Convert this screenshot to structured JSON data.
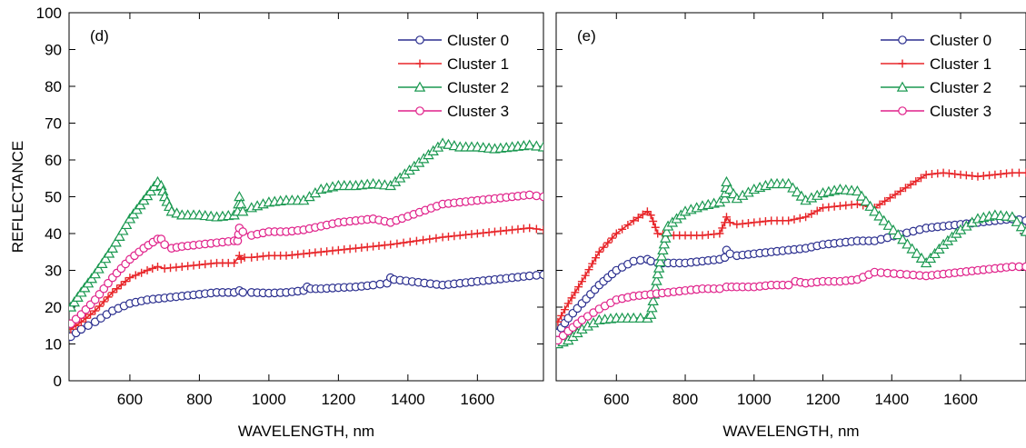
{
  "chart_data": [
    {
      "panel_label": "(d)",
      "type": "line",
      "xlabel": "WAVELENGTH, nm",
      "ylabel": "REFLECTANCE",
      "xlim": [
        425,
        1790
      ],
      "ylim": [
        0,
        100
      ],
      "xticks": [
        600,
        800,
        1000,
        1200,
        1400,
        1600
      ],
      "yticks": [
        0,
        10,
        20,
        30,
        40,
        50,
        60,
        70,
        80,
        90,
        100
      ],
      "grid": false,
      "legend_position": "top-right",
      "series": [
        {
          "name": "Cluster 0",
          "color": "#2b2f8f",
          "marker": "circle",
          "x": [
            430,
            460,
            500,
            550,
            600,
            650,
            700,
            750,
            800,
            850,
            900,
            915,
            925,
            950,
            1000,
            1050,
            1100,
            1110,
            1120,
            1150,
            1200,
            1250,
            1300,
            1340,
            1350,
            1360,
            1500,
            1550,
            1600,
            1650,
            1700,
            1750,
            1790
          ],
          "y": [
            12,
            14,
            16,
            19,
            21,
            22,
            22.5,
            23,
            23.5,
            24,
            24,
            24.5,
            24,
            24,
            23.8,
            24,
            24.5,
            25.5,
            25,
            25,
            25.3,
            25.5,
            26,
            26.5,
            28,
            27.5,
            26,
            26.5,
            27,
            27.5,
            28,
            28.5,
            28.8
          ]
        },
        {
          "name": "Cluster 1",
          "color": "#e8262a",
          "marker": "plus",
          "x": [
            430,
            460,
            500,
            550,
            600,
            650,
            680,
            700,
            750,
            800,
            850,
            900,
            915,
            920,
            930,
            950,
            1000,
            1050,
            1100,
            1150,
            1200,
            1250,
            1300,
            1350,
            1500,
            1550,
            1600,
            1650,
            1700,
            1750,
            1790
          ],
          "y": [
            14,
            16,
            19,
            24,
            28,
            30,
            31,
            30.5,
            31,
            31.5,
            32,
            32,
            34,
            33,
            33.5,
            33.5,
            34,
            34,
            34.5,
            35,
            35.5,
            36,
            36.5,
            37,
            39,
            39.5,
            40,
            40.5,
            41,
            41.5,
            41
          ]
        },
        {
          "name": "Cluster 2",
          "color": "#1a9850",
          "marker": "triangle",
          "x": [
            430,
            460,
            500,
            550,
            600,
            640,
            680,
            690,
            700,
            720,
            750,
            800,
            850,
            900,
            910,
            915,
            925,
            950,
            1000,
            1050,
            1100,
            1150,
            1200,
            1250,
            1300,
            1350,
            1500,
            1550,
            1600,
            1650,
            1700,
            1750,
            1790
          ],
          "y": [
            20,
            24,
            29,
            36,
            44,
            49,
            54,
            53,
            50,
            46,
            45,
            45,
            44.5,
            45,
            46,
            50,
            46,
            47,
            48.5,
            49,
            49,
            52,
            53,
            53,
            53.5,
            53,
            64.5,
            63.5,
            63.5,
            63,
            63.5,
            64,
            63.5
          ]
        },
        {
          "name": "Cluster 3",
          "color": "#e0218a",
          "marker": "circle",
          "x": [
            430,
            460,
            500,
            550,
            600,
            640,
            680,
            690,
            700,
            720,
            750,
            800,
            850,
            900,
            910,
            915,
            925,
            950,
            1000,
            1050,
            1100,
            1150,
            1200,
            1250,
            1300,
            1350,
            1500,
            1550,
            1600,
            1650,
            1700,
            1750,
            1790
          ],
          "y": [
            15.5,
            18,
            22,
            28,
            33,
            36,
            38.5,
            38.5,
            37,
            36,
            36.5,
            37,
            37.5,
            38,
            38,
            41.5,
            40.5,
            39.5,
            40.5,
            40.5,
            41,
            42,
            43,
            43.5,
            44,
            43,
            48,
            48.5,
            49,
            49.5,
            50,
            50.5,
            50
          ]
        }
      ]
    },
    {
      "panel_label": "(e)",
      "type": "line",
      "xlabel": "WAVELENGTH, nm",
      "ylabel": "",
      "xlim": [
        425,
        1790
      ],
      "ylim": [
        0,
        100
      ],
      "xticks": [
        600,
        800,
        1000,
        1200,
        1400,
        1600
      ],
      "yticks": [
        0,
        10,
        20,
        30,
        40,
        50,
        60,
        70,
        80,
        90,
        100
      ],
      "grid": false,
      "legend_position": "top-right",
      "series": [
        {
          "name": "Cluster 0",
          "color": "#2b2f8f",
          "marker": "circle",
          "x": [
            430,
            460,
            500,
            550,
            600,
            650,
            690,
            700,
            720,
            750,
            800,
            850,
            900,
            915,
            920,
            930,
            950,
            1000,
            1050,
            1100,
            1150,
            1200,
            1250,
            1300,
            1350,
            1500,
            1550,
            1600,
            1650,
            1700,
            1750,
            1790
          ],
          "y": [
            13,
            17,
            21,
            26,
            30,
            32.5,
            33,
            32.5,
            32,
            32,
            32,
            32.5,
            33,
            33.5,
            35.5,
            34.5,
            34,
            34.5,
            35,
            35.5,
            36,
            37,
            37.5,
            38,
            38,
            41.5,
            42,
            42.5,
            43,
            43.5,
            44,
            43.5
          ]
        },
        {
          "name": "Cluster 1",
          "color": "#e8262a",
          "marker": "plus",
          "x": [
            430,
            460,
            500,
            550,
            600,
            650,
            690,
            700,
            720,
            750,
            800,
            850,
            900,
            915,
            920,
            930,
            950,
            1000,
            1050,
            1100,
            1150,
            1200,
            1250,
            1300,
            1350,
            1500,
            1550,
            1600,
            1650,
            1700,
            1750,
            1790
          ],
          "y": [
            16,
            21,
            27,
            35,
            40,
            43.5,
            46,
            45,
            40,
            39.5,
            39.5,
            39.5,
            40,
            43,
            44.5,
            43,
            42.5,
            43,
            43.5,
            43.5,
            44.5,
            47,
            47.5,
            48,
            47,
            56,
            56.5,
            56,
            55.5,
            56,
            56.5,
            56.5
          ]
        },
        {
          "name": "Cluster 2",
          "color": "#1a9850",
          "marker": "triangle",
          "x": [
            430,
            460,
            500,
            550,
            600,
            650,
            690,
            700,
            720,
            750,
            800,
            850,
            900,
            915,
            920,
            930,
            950,
            1000,
            1050,
            1100,
            1150,
            1200,
            1250,
            1300,
            1350,
            1500,
            1550,
            1600,
            1650,
            1700,
            1750,
            1790
          ],
          "y": [
            10,
            11,
            14,
            16.5,
            17,
            17,
            17,
            18,
            29,
            42,
            46,
            47.5,
            48.5,
            49.5,
            54,
            52,
            49.5,
            52,
            53.5,
            53.5,
            49,
            51,
            52,
            51.5,
            46,
            32,
            37,
            41,
            44,
            45,
            44.5,
            40.5
          ]
        },
        {
          "name": "Cluster 3",
          "color": "#e0218a",
          "marker": "circle",
          "x": [
            430,
            460,
            500,
            550,
            600,
            650,
            700,
            750,
            800,
            850,
            900,
            920,
            950,
            1000,
            1050,
            1100,
            1120,
            1150,
            1200,
            1250,
            1300,
            1350,
            1500,
            1550,
            1600,
            1650,
            1700,
            1750,
            1790
          ],
          "y": [
            11,
            13.5,
            16.5,
            19.5,
            22,
            23,
            23.5,
            24,
            24.5,
            25,
            25,
            25.5,
            25.5,
            25.5,
            26,
            26,
            27,
            26.5,
            27,
            27,
            27.5,
            29.5,
            28.5,
            29,
            29.5,
            30,
            30.5,
            31,
            31
          ]
        }
      ]
    }
  ]
}
